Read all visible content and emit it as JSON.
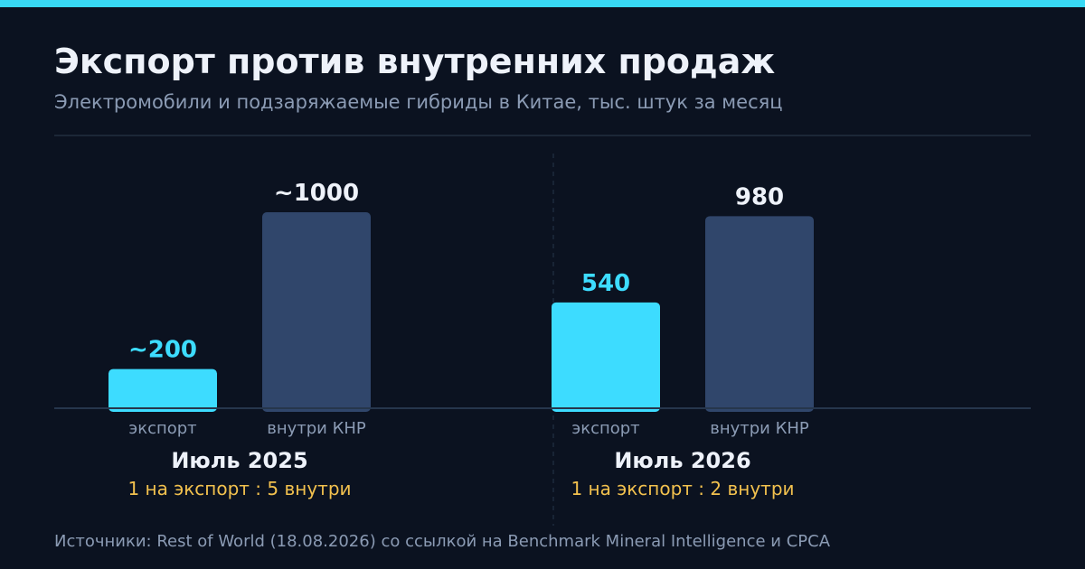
{
  "title": "Экспорт против внутренних продаж",
  "subtitle": "Электромобили и подзаряжаемые гибриды в Китае, тыс. штук за месяц",
  "source": "Источники: Rest of World (18.08.2026) со ссылкой на Benchmark Mineral Intelligence и CPCA",
  "colors": {
    "accent": "#3ddcff",
    "domestic": "#30466b",
    "ratio": "#f2c14e",
    "background": "#0b1220",
    "muted": "#8b9bb4",
    "text": "#eef2fa"
  },
  "chart_data": {
    "type": "bar",
    "ylim": [
      0,
      1000
    ],
    "groups": [
      {
        "label": "Июль 2025",
        "ratio_text": "1 на экспорт : 5 внутри",
        "bars": [
          {
            "category": "экспорт",
            "value": 200,
            "label": "~200",
            "kind": "export"
          },
          {
            "category": "внутри КНР",
            "value": 1000,
            "label": "~1000",
            "kind": "domestic"
          }
        ]
      },
      {
        "label": "Июль 2026",
        "ratio_text": "1 на экспорт : 2 внутри",
        "bars": [
          {
            "category": "экспорт",
            "value": 540,
            "label": "540",
            "kind": "export"
          },
          {
            "category": "внутри КНР",
            "value": 980,
            "label": "980",
            "kind": "domestic"
          }
        ]
      }
    ]
  }
}
